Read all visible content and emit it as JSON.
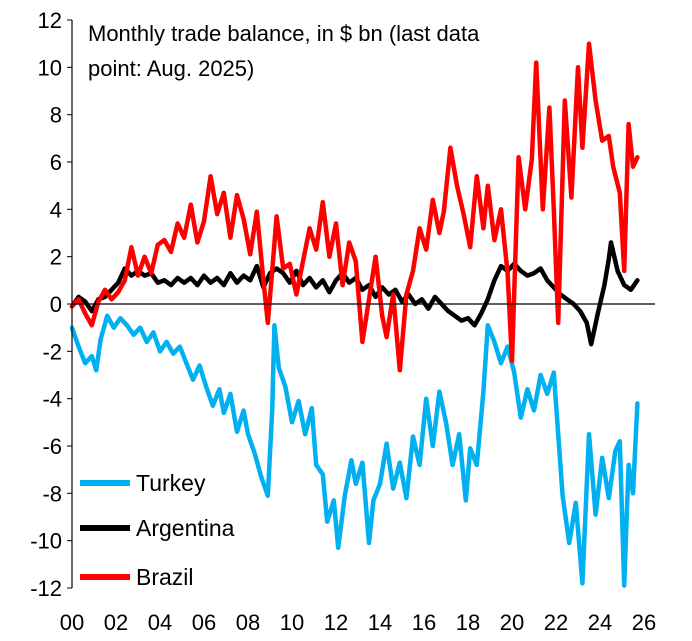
{
  "chart_data": {
    "type": "line",
    "title_lines": [
      "Monthly trade balance, in $ bn (last data",
      "point: Aug. 2025)"
    ],
    "xlabel": "",
    "ylabel": "",
    "xlim": [
      2000,
      2026.5
    ],
    "ylim": [
      -12,
      12
    ],
    "y_ticks": [
      "12",
      "10",
      "8",
      "6",
      "4",
      "2",
      "0",
      "-2",
      "-4",
      "-6",
      "-8",
      "-10",
      "-12"
    ],
    "x_ticks": [
      "00",
      "02",
      "04",
      "06",
      "08",
      "10",
      "12",
      "14",
      "16",
      "18",
      "20",
      "22",
      "24",
      "26"
    ],
    "grid": false,
    "legend_position": "bottom-left",
    "series": [
      {
        "name": "Turkey",
        "color": "#00B0F0",
        "points": [
          [
            2000.0,
            -1.0
          ],
          [
            2000.3,
            -1.8
          ],
          [
            2000.6,
            -2.5
          ],
          [
            2000.9,
            -2.2
          ],
          [
            2001.1,
            -2.8
          ],
          [
            2001.3,
            -1.5
          ],
          [
            2001.6,
            -0.5
          ],
          [
            2001.9,
            -1.0
          ],
          [
            2002.2,
            -0.6
          ],
          [
            2002.5,
            -0.9
          ],
          [
            2002.8,
            -1.3
          ],
          [
            2003.1,
            -1.0
          ],
          [
            2003.4,
            -1.6
          ],
          [
            2003.7,
            -1.2
          ],
          [
            2004.0,
            -2.0
          ],
          [
            2004.3,
            -1.6
          ],
          [
            2004.6,
            -2.1
          ],
          [
            2004.9,
            -1.8
          ],
          [
            2005.2,
            -2.5
          ],
          [
            2005.5,
            -3.2
          ],
          [
            2005.8,
            -2.6
          ],
          [
            2006.1,
            -3.5
          ],
          [
            2006.4,
            -4.3
          ],
          [
            2006.7,
            -3.6
          ],
          [
            2006.9,
            -4.6
          ],
          [
            2007.2,
            -3.8
          ],
          [
            2007.5,
            -5.4
          ],
          [
            2007.8,
            -4.5
          ],
          [
            2008.0,
            -5.5
          ],
          [
            2008.3,
            -6.3
          ],
          [
            2008.6,
            -7.3
          ],
          [
            2008.9,
            -8.1
          ],
          [
            2009.1,
            -4.5
          ],
          [
            2009.2,
            -0.9
          ],
          [
            2009.4,
            -2.7
          ],
          [
            2009.7,
            -3.5
          ],
          [
            2010.0,
            -5.0
          ],
          [
            2010.3,
            -4.1
          ],
          [
            2010.6,
            -5.5
          ],
          [
            2010.9,
            -4.4
          ],
          [
            2011.1,
            -6.8
          ],
          [
            2011.4,
            -7.2
          ],
          [
            2011.6,
            -9.2
          ],
          [
            2011.9,
            -8.3
          ],
          [
            2012.1,
            -10.3
          ],
          [
            2012.4,
            -8.1
          ],
          [
            2012.7,
            -6.6
          ],
          [
            2012.9,
            -7.6
          ],
          [
            2013.2,
            -6.7
          ],
          [
            2013.5,
            -10.1
          ],
          [
            2013.7,
            -8.3
          ],
          [
            2014.0,
            -7.6
          ],
          [
            2014.3,
            -5.9
          ],
          [
            2014.6,
            -7.8
          ],
          [
            2014.9,
            -6.7
          ],
          [
            2015.2,
            -8.2
          ],
          [
            2015.5,
            -5.6
          ],
          [
            2015.8,
            -6.8
          ],
          [
            2016.1,
            -4.0
          ],
          [
            2016.4,
            -6.0
          ],
          [
            2016.7,
            -3.7
          ],
          [
            2017.0,
            -5.0
          ],
          [
            2017.3,
            -6.8
          ],
          [
            2017.6,
            -5.5
          ],
          [
            2017.9,
            -8.3
          ],
          [
            2018.1,
            -6.1
          ],
          [
            2018.4,
            -6.8
          ],
          [
            2018.7,
            -3.7
          ],
          [
            2018.9,
            -0.9
          ],
          [
            2019.2,
            -1.6
          ],
          [
            2019.5,
            -2.5
          ],
          [
            2019.8,
            -1.8
          ],
          [
            2020.1,
            -2.9
          ],
          [
            2020.4,
            -4.8
          ],
          [
            2020.7,
            -3.6
          ],
          [
            2021.0,
            -4.5
          ],
          [
            2021.3,
            -3.0
          ],
          [
            2021.6,
            -3.8
          ],
          [
            2021.9,
            -2.9
          ],
          [
            2022.1,
            -5.5
          ],
          [
            2022.3,
            -8.1
          ],
          [
            2022.6,
            -10.1
          ],
          [
            2022.9,
            -8.4
          ],
          [
            2023.2,
            -11.8
          ],
          [
            2023.5,
            -5.5
          ],
          [
            2023.8,
            -8.9
          ],
          [
            2024.1,
            -6.5
          ],
          [
            2024.4,
            -8.2
          ],
          [
            2024.7,
            -6.2
          ],
          [
            2024.9,
            -5.8
          ],
          [
            2025.1,
            -11.9
          ],
          [
            2025.3,
            -6.8
          ],
          [
            2025.5,
            -8.0
          ],
          [
            2025.7,
            -4.2
          ]
        ]
      },
      {
        "name": "Argentina",
        "color": "#000000",
        "points": [
          [
            2000.0,
            -0.1
          ],
          [
            2000.3,
            0.3
          ],
          [
            2000.6,
            0.1
          ],
          [
            2000.9,
            -0.3
          ],
          [
            2001.2,
            0.2
          ],
          [
            2001.5,
            0.3
          ],
          [
            2001.8,
            0.6
          ],
          [
            2002.1,
            0.9
          ],
          [
            2002.4,
            1.5
          ],
          [
            2002.7,
            1.2
          ],
          [
            2003.0,
            1.4
          ],
          [
            2003.3,
            1.2
          ],
          [
            2003.6,
            1.3
          ],
          [
            2003.9,
            0.9
          ],
          [
            2004.2,
            1.0
          ],
          [
            2004.5,
            0.8
          ],
          [
            2004.8,
            1.1
          ],
          [
            2005.1,
            0.9
          ],
          [
            2005.4,
            1.1
          ],
          [
            2005.7,
            0.8
          ],
          [
            2006.0,
            1.2
          ],
          [
            2006.3,
            0.9
          ],
          [
            2006.6,
            1.1
          ],
          [
            2006.9,
            0.8
          ],
          [
            2007.2,
            1.3
          ],
          [
            2007.5,
            0.9
          ],
          [
            2007.8,
            1.2
          ],
          [
            2008.1,
            1.0
          ],
          [
            2008.4,
            1.6
          ],
          [
            2008.7,
            0.7
          ],
          [
            2009.0,
            1.3
          ],
          [
            2009.3,
            1.5
          ],
          [
            2009.6,
            1.3
          ],
          [
            2009.9,
            0.9
          ],
          [
            2010.2,
            1.4
          ],
          [
            2010.5,
            0.8
          ],
          [
            2010.8,
            1.1
          ],
          [
            2011.1,
            0.7
          ],
          [
            2011.4,
            1.0
          ],
          [
            2011.7,
            0.5
          ],
          [
            2012.0,
            1.0
          ],
          [
            2012.3,
            1.3
          ],
          [
            2012.6,
            0.9
          ],
          [
            2012.9,
            1.1
          ],
          [
            2013.2,
            0.6
          ],
          [
            2013.5,
            0.8
          ],
          [
            2013.8,
            0.3
          ],
          [
            2014.1,
            0.7
          ],
          [
            2014.4,
            0.4
          ],
          [
            2014.7,
            0.6
          ],
          [
            2015.0,
            0.1
          ],
          [
            2015.3,
            0.4
          ],
          [
            2015.6,
            0.0
          ],
          [
            2015.9,
            0.2
          ],
          [
            2016.2,
            -0.2
          ],
          [
            2016.5,
            0.3
          ],
          [
            2016.8,
            0.0
          ],
          [
            2017.1,
            -0.3
          ],
          [
            2017.4,
            -0.5
          ],
          [
            2017.7,
            -0.7
          ],
          [
            2018.0,
            -0.6
          ],
          [
            2018.3,
            -0.9
          ],
          [
            2018.6,
            -0.4
          ],
          [
            2018.9,
            0.2
          ],
          [
            2019.2,
            1.0
          ],
          [
            2019.5,
            1.6
          ],
          [
            2019.8,
            1.4
          ],
          [
            2020.1,
            1.7
          ],
          [
            2020.4,
            1.4
          ],
          [
            2020.7,
            1.2
          ],
          [
            2021.0,
            1.3
          ],
          [
            2021.3,
            1.5
          ],
          [
            2021.6,
            1.0
          ],
          [
            2021.9,
            0.7
          ],
          [
            2022.2,
            0.4
          ],
          [
            2022.5,
            0.2
          ],
          [
            2022.8,
            0.0
          ],
          [
            2023.1,
            -0.3
          ],
          [
            2023.4,
            -0.8
          ],
          [
            2023.6,
            -1.7
          ],
          [
            2023.9,
            -0.4
          ],
          [
            2024.2,
            0.8
          ],
          [
            2024.4,
            1.9
          ],
          [
            2024.5,
            2.6
          ],
          [
            2024.8,
            1.4
          ],
          [
            2025.1,
            0.8
          ],
          [
            2025.4,
            0.6
          ],
          [
            2025.7,
            1.0
          ]
        ]
      },
      {
        "name": "Brazil",
        "color": "#FF0000",
        "points": [
          [
            2000.0,
            -0.1
          ],
          [
            2000.3,
            0.2
          ],
          [
            2000.6,
            -0.4
          ],
          [
            2000.9,
            -0.9
          ],
          [
            2001.2,
            0.1
          ],
          [
            2001.5,
            0.6
          ],
          [
            2001.8,
            0.2
          ],
          [
            2002.1,
            0.5
          ],
          [
            2002.4,
            1.0
          ],
          [
            2002.7,
            2.4
          ],
          [
            2003.0,
            1.2
          ],
          [
            2003.3,
            2.0
          ],
          [
            2003.6,
            1.3
          ],
          [
            2003.9,
            2.5
          ],
          [
            2004.2,
            2.7
          ],
          [
            2004.5,
            2.2
          ],
          [
            2004.8,
            3.4
          ],
          [
            2005.1,
            2.8
          ],
          [
            2005.4,
            4.2
          ],
          [
            2005.7,
            2.6
          ],
          [
            2006.0,
            3.5
          ],
          [
            2006.3,
            5.4
          ],
          [
            2006.6,
            3.8
          ],
          [
            2006.9,
            4.7
          ],
          [
            2007.2,
            2.8
          ],
          [
            2007.5,
            4.6
          ],
          [
            2007.8,
            3.6
          ],
          [
            2008.1,
            2.1
          ],
          [
            2008.4,
            3.9
          ],
          [
            2008.7,
            1.0
          ],
          [
            2008.9,
            -0.8
          ],
          [
            2009.1,
            1.4
          ],
          [
            2009.3,
            3.7
          ],
          [
            2009.6,
            1.5
          ],
          [
            2009.9,
            1.7
          ],
          [
            2010.2,
            0.4
          ],
          [
            2010.5,
            1.8
          ],
          [
            2010.8,
            3.2
          ],
          [
            2011.1,
            2.3
          ],
          [
            2011.4,
            4.3
          ],
          [
            2011.7,
            2.0
          ],
          [
            2012.0,
            3.4
          ],
          [
            2012.3,
            0.8
          ],
          [
            2012.6,
            2.6
          ],
          [
            2012.9,
            1.8
          ],
          [
            2013.2,
            -1.6
          ],
          [
            2013.5,
            0.2
          ],
          [
            2013.8,
            2.0
          ],
          [
            2014.1,
            -0.5
          ],
          [
            2014.3,
            -1.4
          ],
          [
            2014.6,
            0.4
          ],
          [
            2014.9,
            -2.8
          ],
          [
            2015.2,
            0.4
          ],
          [
            2015.5,
            1.4
          ],
          [
            2015.8,
            3.2
          ],
          [
            2016.1,
            2.3
          ],
          [
            2016.4,
            4.4
          ],
          [
            2016.7,
            3.0
          ],
          [
            2016.9,
            3.9
          ],
          [
            2017.2,
            6.6
          ],
          [
            2017.5,
            5.0
          ],
          [
            2017.8,
            3.8
          ],
          [
            2018.1,
            2.4
          ],
          [
            2018.4,
            5.4
          ],
          [
            2018.7,
            3.2
          ],
          [
            2018.9,
            5.0
          ],
          [
            2019.2,
            2.7
          ],
          [
            2019.5,
            4.0
          ],
          [
            2019.8,
            1.3
          ],
          [
            2020.0,
            -2.4
          ],
          [
            2020.3,
            6.2
          ],
          [
            2020.6,
            4.0
          ],
          [
            2020.9,
            6.1
          ],
          [
            2021.1,
            10.2
          ],
          [
            2021.4,
            4.0
          ],
          [
            2021.7,
            8.3
          ],
          [
            2021.9,
            4.0
          ],
          [
            2022.1,
            -0.8
          ],
          [
            2022.4,
            8.6
          ],
          [
            2022.7,
            4.5
          ],
          [
            2023.0,
            10.0
          ],
          [
            2023.2,
            6.6
          ],
          [
            2023.5,
            11.0
          ],
          [
            2023.8,
            8.6
          ],
          [
            2024.1,
            6.9
          ],
          [
            2024.4,
            7.1
          ],
          [
            2024.6,
            5.8
          ],
          [
            2024.9,
            4.7
          ],
          [
            2025.1,
            1.4
          ],
          [
            2025.3,
            7.6
          ],
          [
            2025.5,
            5.8
          ],
          [
            2025.7,
            6.2
          ]
        ]
      }
    ]
  }
}
